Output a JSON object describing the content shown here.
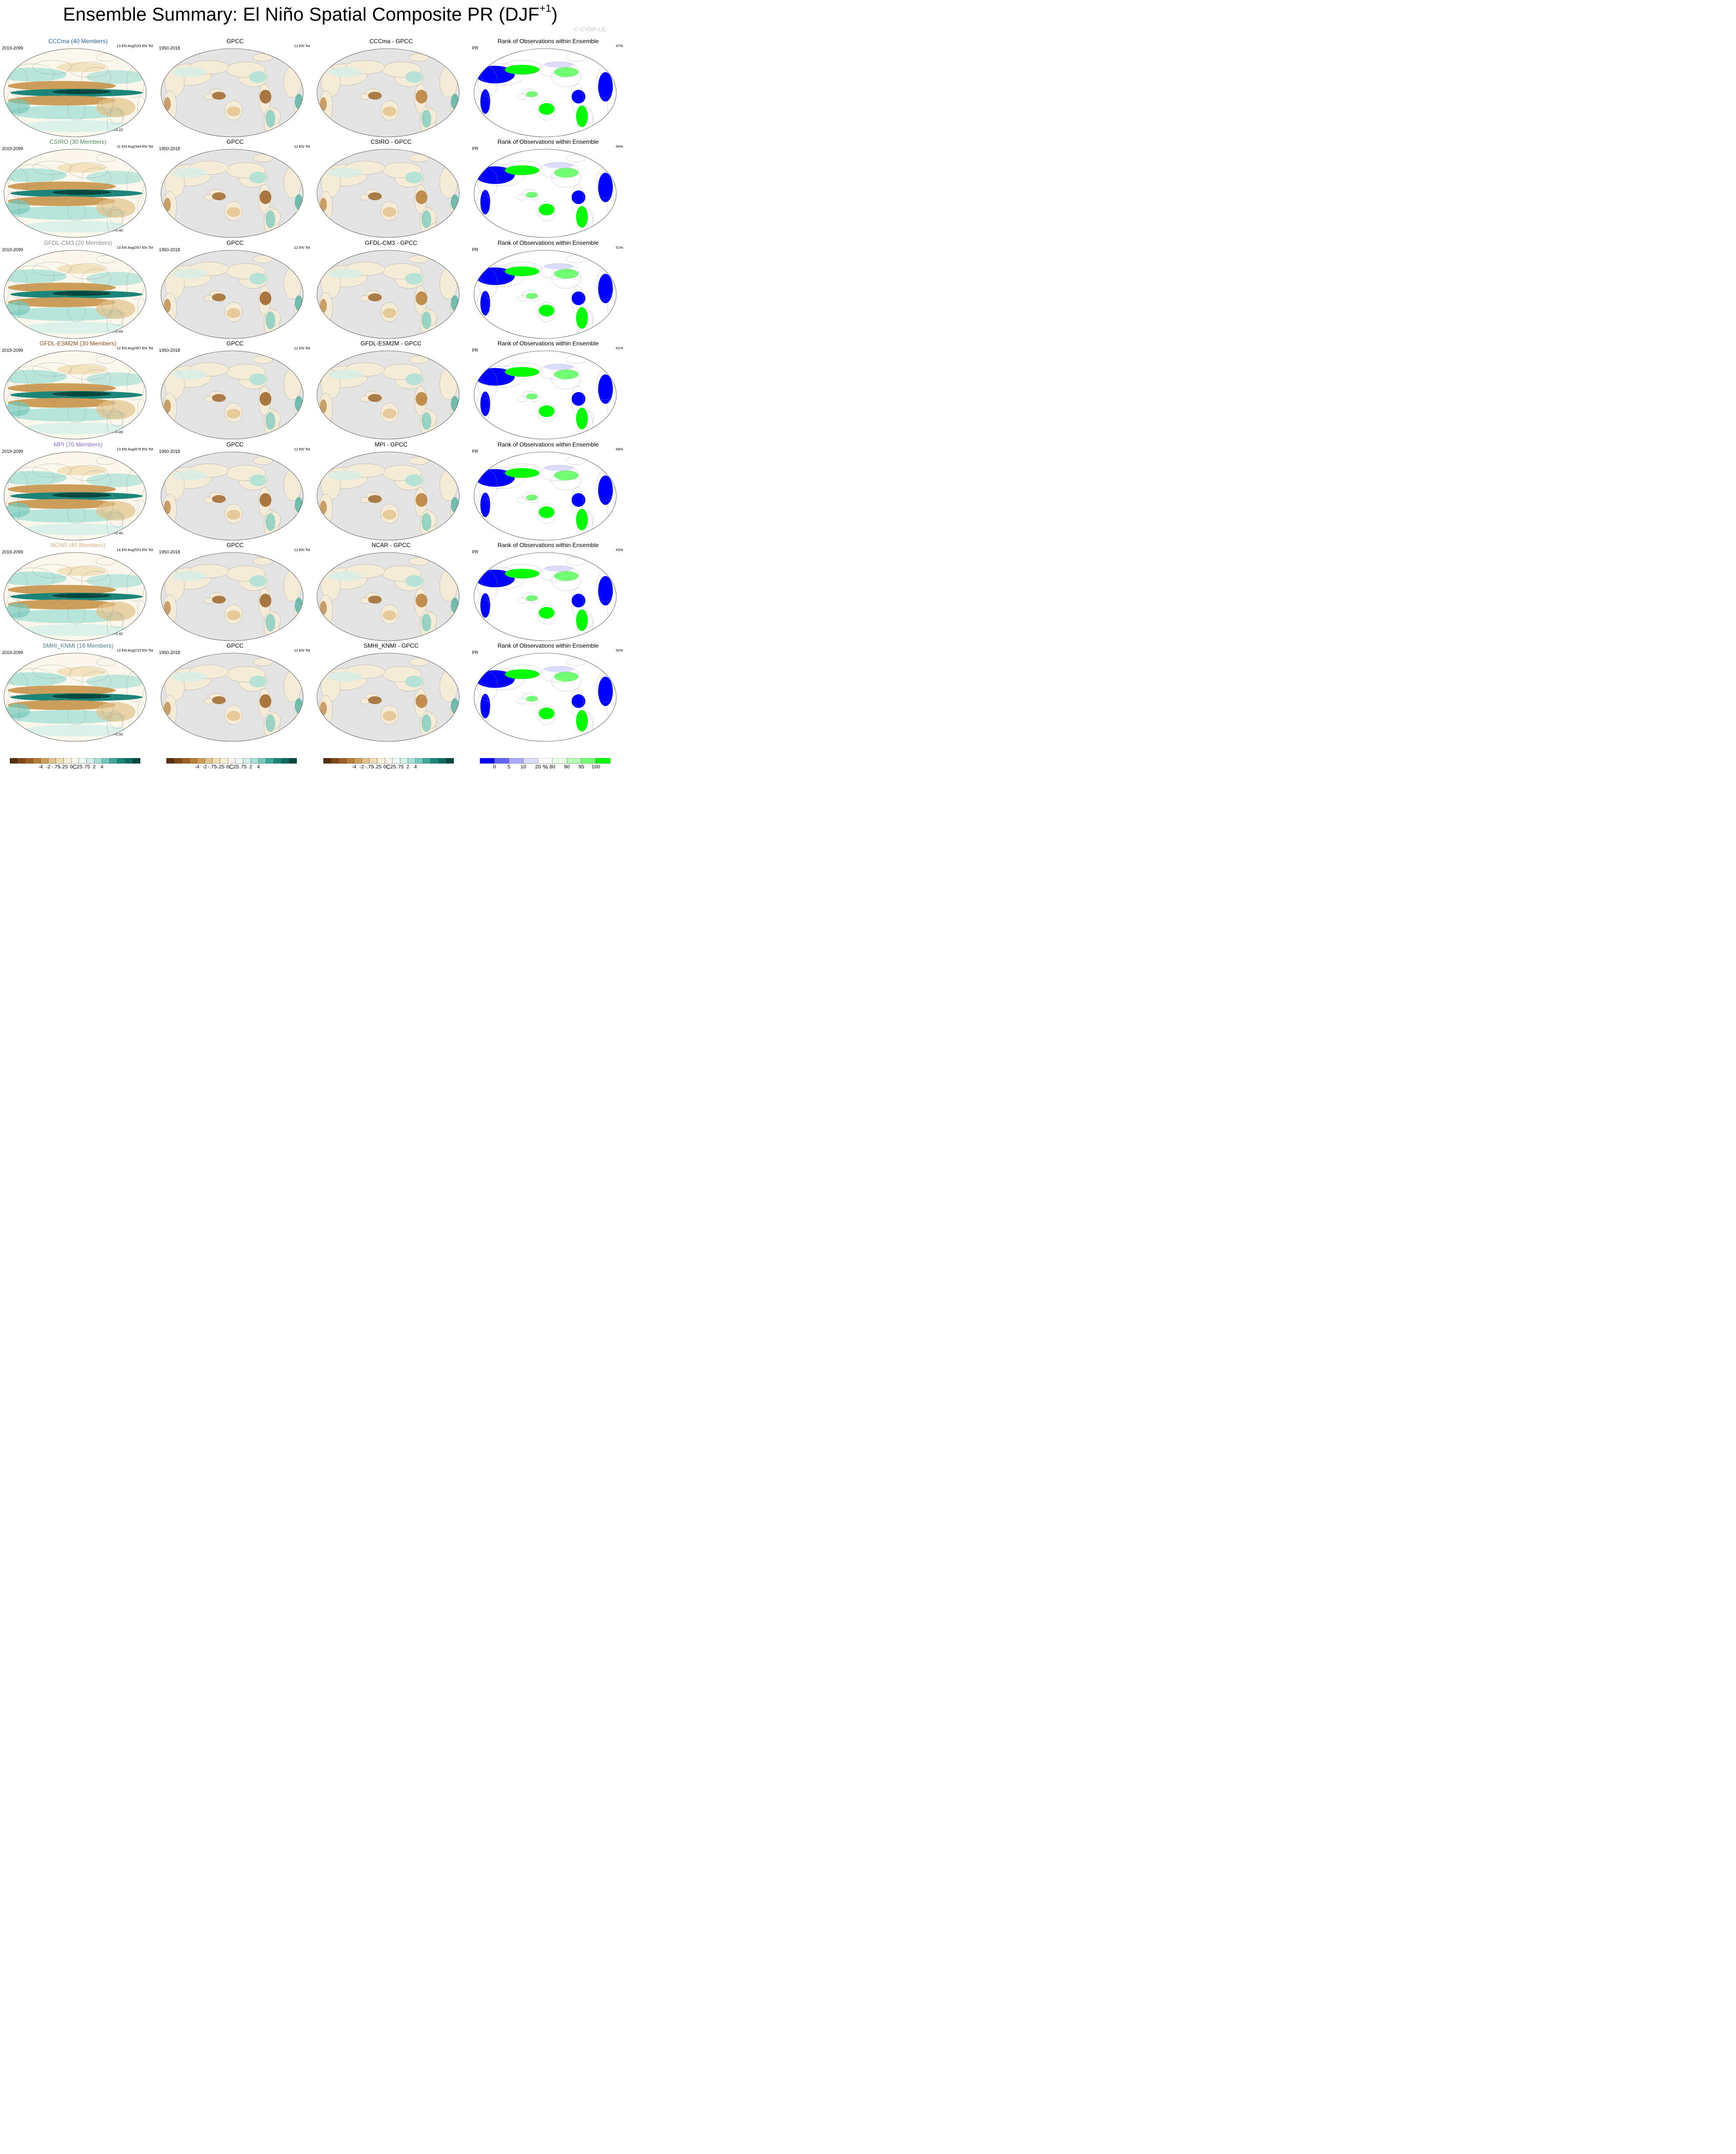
{
  "title": {
    "main": "Ensemble Summary: El Niño Spatial Composite PR (DJF",
    "sup": "+1",
    "close": ")"
  },
  "watermark": "© CVDP-LE",
  "colors": {
    "diverging": [
      "#553010",
      "#7d4a17",
      "#9b6124",
      "#b67f38",
      "#cd9d5a",
      "#e2c28a",
      "#f0dcb3",
      "#f8efd8",
      "#fbf7ec",
      "#eef8f6",
      "#d3efea",
      "#a8e0d6",
      "#73c9bb",
      "#3fa89a",
      "#1b8579",
      "#0b6b5f",
      "#04493f"
    ],
    "rank": [
      "#0000ff",
      "#6464ff",
      "#aaaaff",
      "#dcdcff",
      "#ffffff",
      "#e6ffe6",
      "#b4ffb4",
      "#73ff73",
      "#00ff00"
    ],
    "land_mask": "#e4e4e4"
  },
  "rows": [
    {
      "model": "CCCma (40 Members)",
      "model_color": "#1f5f9a",
      "period": "2019-2099",
      "counts": "13 EN Avg/523 EN Tot",
      "r": "r=0.22",
      "obs_title": "GPCC",
      "obs_period": "1950-2018",
      "obs_counts": "12 EN Tot",
      "diff_title": "CCCma - GPCC",
      "rank_title": "Rank of Observations within Ensemble",
      "rank_var": "PR",
      "rank_pct": "47%"
    },
    {
      "model": "CSIRO (30 Members)",
      "model_color": "#4f8a5c",
      "period": "2019-2099",
      "counts": "11 EN Avg/344 EN Tot",
      "r": "r=0.40",
      "obs_title": "GPCC",
      "obs_period": "1950-2018",
      "obs_counts": "12 EN Tot",
      "diff_title": "CSIRO - GPCC",
      "rank_title": "Rank of Observations within Ensemble",
      "rank_var": "PR",
      "rank_pct": "64%"
    },
    {
      "model": "GFDL-CM3 (20 Members)",
      "model_color": "#8a8a8a",
      "period": "2019-2099",
      "counts": "13 EN Avg/267 EN Tot",
      "r": "r=0.43",
      "obs_title": "GPCC",
      "obs_period": "1950-2018",
      "obs_counts": "12 EN Tot",
      "diff_title": "GFDL-CM3 - GPCC",
      "rank_title": "Rank of Observations within Ensemble",
      "rank_var": "PR",
      "rank_pct": "51%"
    },
    {
      "model": "GFDL-ESM2M (30 Members)",
      "model_color": "#8a4a1a",
      "period": "2019-2099",
      "counts": "12 EN Avg/357 EN Tot",
      "r": "r=0.49",
      "obs_title": "GPCC",
      "obs_period": "1950-2018",
      "obs_counts": "12 EN Tot",
      "diff_title": "GFDL-ESM2M - GPCC",
      "rank_title": "Rank of Observations within Ensemble",
      "rank_var": "PR",
      "rank_pct": "51%"
    },
    {
      "model": "MPI (70 Members)",
      "model_color": "#8a6ad0",
      "period": "2019-2099",
      "counts": "13 EN Avg/875 EN Tot",
      "r": "r=0.40",
      "obs_title": "GPCC",
      "obs_period": "1950-2018",
      "obs_counts": "12 EN Tot",
      "diff_title": "MPI - GPCC",
      "rank_title": "Rank of Observations within Ensemble",
      "rank_var": "PR",
      "rank_pct": "68%"
    },
    {
      "model": "NCAR (40 Members)",
      "model_color": "#d8ae7c",
      "period": "2019-2099",
      "counts": "14 EN Avg/551 EN Tot",
      "r": "r=0.42",
      "obs_title": "GPCC",
      "obs_period": "1950-2018",
      "obs_counts": "12 EN Tot",
      "diff_title": "NCAR - GPCC",
      "rank_title": "Rank of Observations within Ensemble",
      "rank_var": "PR",
      "rank_pct": "43%"
    },
    {
      "model": "SMHI_KNMI (16 Members)",
      "model_color": "#4a7e88",
      "period": "2019-2099",
      "counts": "13 EN Avg/215 EN Tot",
      "r": "r=0.50",
      "obs_title": "GPCC",
      "obs_period": "1950-2018",
      "obs_counts": "12 EN Tot",
      "diff_title": "SMHI_KNMI - GPCC",
      "rank_title": "Rank of Observations within Ensemble",
      "rank_var": "PR",
      "rank_pct": "50%"
    }
  ],
  "colorbars": [
    {
      "ticks": [
        "-4",
        "-2",
        "-.75",
        "-.25",
        "0",
        ".25",
        ".75",
        "2",
        "4"
      ],
      "unit": "C"
    },
    {
      "ticks": [
        "-4",
        "-2",
        "-.75",
        "-.25",
        "0",
        ".25",
        ".75",
        "2",
        "4"
      ],
      "unit": "C"
    },
    {
      "ticks": [
        "-4",
        "-2",
        "-.75",
        "-.25",
        "0",
        ".25",
        ".75",
        "2",
        "4"
      ],
      "unit": "C"
    },
    {
      "ticks": [
        "0",
        "5",
        "10",
        "20",
        "80",
        "90",
        "95",
        "100"
      ],
      "unit": "%"
    }
  ],
  "chart_data": {
    "type": "heatmap",
    "projection": "Robinson (Pacific-centered)",
    "variable": "PR",
    "season": "DJF+1",
    "rows": 7,
    "columns": [
      "model ensemble composite",
      "GPCC observations",
      "model minus GPCC",
      "rank of observations within ensemble"
    ],
    "pattern_correlations": [
      0.22,
      0.4,
      0.43,
      0.49,
      0.4,
      0.42,
      0.5
    ],
    "rank_percent": [
      47,
      64,
      51,
      51,
      68,
      43,
      50
    ],
    "ensemble_members": [
      40,
      30,
      20,
      30,
      70,
      40,
      16
    ],
    "en_events_avg": [
      13,
      11,
      13,
      12,
      13,
      14,
      13
    ],
    "en_events_total": [
      523,
      344,
      267,
      357,
      875,
      551,
      215
    ],
    "obs_en_events": 12,
    "color_levels": [
      -4,
      -2,
      -0.75,
      -0.25,
      0,
      0.25,
      0.75,
      2,
      4
    ],
    "rank_levels": [
      0,
      5,
      10,
      20,
      80,
      90,
      95,
      100
    ]
  }
}
